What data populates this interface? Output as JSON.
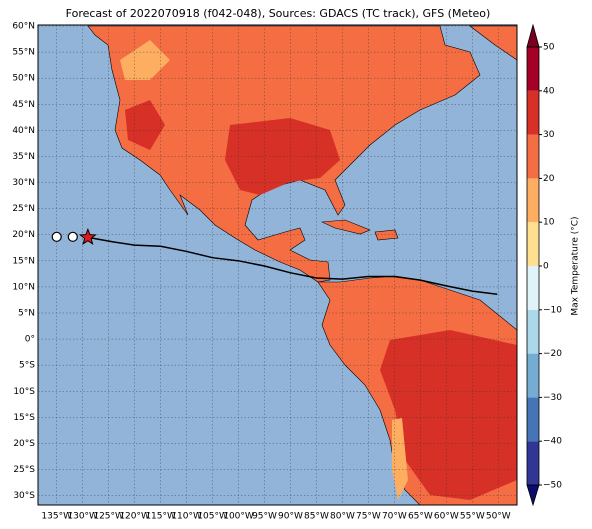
{
  "chart_data": {
    "type": "map",
    "title": "Forecast of 2022070918 (f042-048), Sources: GDACS (TC track), GFS (Meteo)",
    "xlim": [
      -138.6,
      -46.4
    ],
    "ylim": [
      -31.8,
      60.2
    ],
    "grid": true,
    "xticks": [
      {
        "value": -135,
        "label": "135°W"
      },
      {
        "value": -130,
        "label": "130°W"
      },
      {
        "value": -125,
        "label": "125°W"
      },
      {
        "value": -120,
        "label": "120°W"
      },
      {
        "value": -115,
        "label": "115°W"
      },
      {
        "value": -110,
        "label": "110°W"
      },
      {
        "value": -105,
        "label": "105°W"
      },
      {
        "value": -100,
        "label": "100°W"
      },
      {
        "value": -95,
        "label": "95°W"
      },
      {
        "value": -90,
        "label": "90°W"
      },
      {
        "value": -85,
        "label": "85°W"
      },
      {
        "value": -80,
        "label": "80°W"
      },
      {
        "value": -75,
        "label": "75°W"
      },
      {
        "value": -70,
        "label": "70°W"
      },
      {
        "value": -65,
        "label": "65°W"
      },
      {
        "value": -60,
        "label": "60°W"
      },
      {
        "value": -55,
        "label": "55°W"
      },
      {
        "value": -50,
        "label": "50°W"
      }
    ],
    "yticks": [
      {
        "value": 60,
        "label": "60°N"
      },
      {
        "value": 55,
        "label": "55°N"
      },
      {
        "value": 50,
        "label": "50°N"
      },
      {
        "value": 45,
        "label": "45°N"
      },
      {
        "value": 40,
        "label": "40°N"
      },
      {
        "value": 35,
        "label": "35°N"
      },
      {
        "value": 30,
        "label": "30°N"
      },
      {
        "value": 25,
        "label": "25°N"
      },
      {
        "value": 20,
        "label": "20°N"
      },
      {
        "value": 15,
        "label": "15°N"
      },
      {
        "value": 10,
        "label": "10°N"
      },
      {
        "value": 5,
        "label": "5°N"
      },
      {
        "value": 0,
        "label": "0°"
      },
      {
        "value": -5,
        "label": "5°S"
      },
      {
        "value": -10,
        "label": "10°S"
      },
      {
        "value": -15,
        "label": "15°S"
      },
      {
        "value": -20,
        "label": "20°S"
      },
      {
        "value": -25,
        "label": "25°S"
      },
      {
        "value": -30,
        "label": "30°S"
      }
    ],
    "track": {
      "color": "#000000",
      "x": [
        -129,
        -124,
        -120,
        -115,
        -110,
        -105,
        -100,
        -95,
        -90,
        -85,
        -80,
        -75,
        -70,
        -65,
        -60,
        -55,
        -50.2
      ],
      "y": [
        19.5,
        18.6,
        18,
        17.8,
        16.8,
        15.6,
        15,
        14,
        12.7,
        11.7,
        11.5,
        12,
        12,
        11.3,
        10.2,
        9.2,
        8.6
      ]
    },
    "positions": {
      "x": [
        -135,
        -131.9
      ],
      "y": [
        19.6,
        19.6
      ],
      "color": "#ffffff"
    },
    "current": {
      "x": -129,
      "y": 19.5,
      "color": "#e31a1c"
    },
    "colorbar": {
      "label": "Max Temperature (°C)",
      "lim": [
        -50,
        50
      ],
      "ticks": [
        50,
        40,
        30,
        20,
        10,
        0,
        {
          "value": -10,
          "label": "−10"
        },
        {
          "value": -20,
          "label": "−20"
        },
        {
          "value": -30,
          "label": "−30"
        },
        {
          "value": -40,
          "label": "−40"
        },
        {
          "value": -50,
          "label": "−50"
        }
      ],
      "colors": [
        "#313695",
        "#4575b4",
        "#74add1",
        "#abd9e9",
        "#e0f3f8",
        "#fee090",
        "#fdae61",
        "#f46d43",
        "#d73027",
        "#a50026"
      ],
      "under_color": "#0c0c6e",
      "over_color": "#7a0020"
    }
  }
}
